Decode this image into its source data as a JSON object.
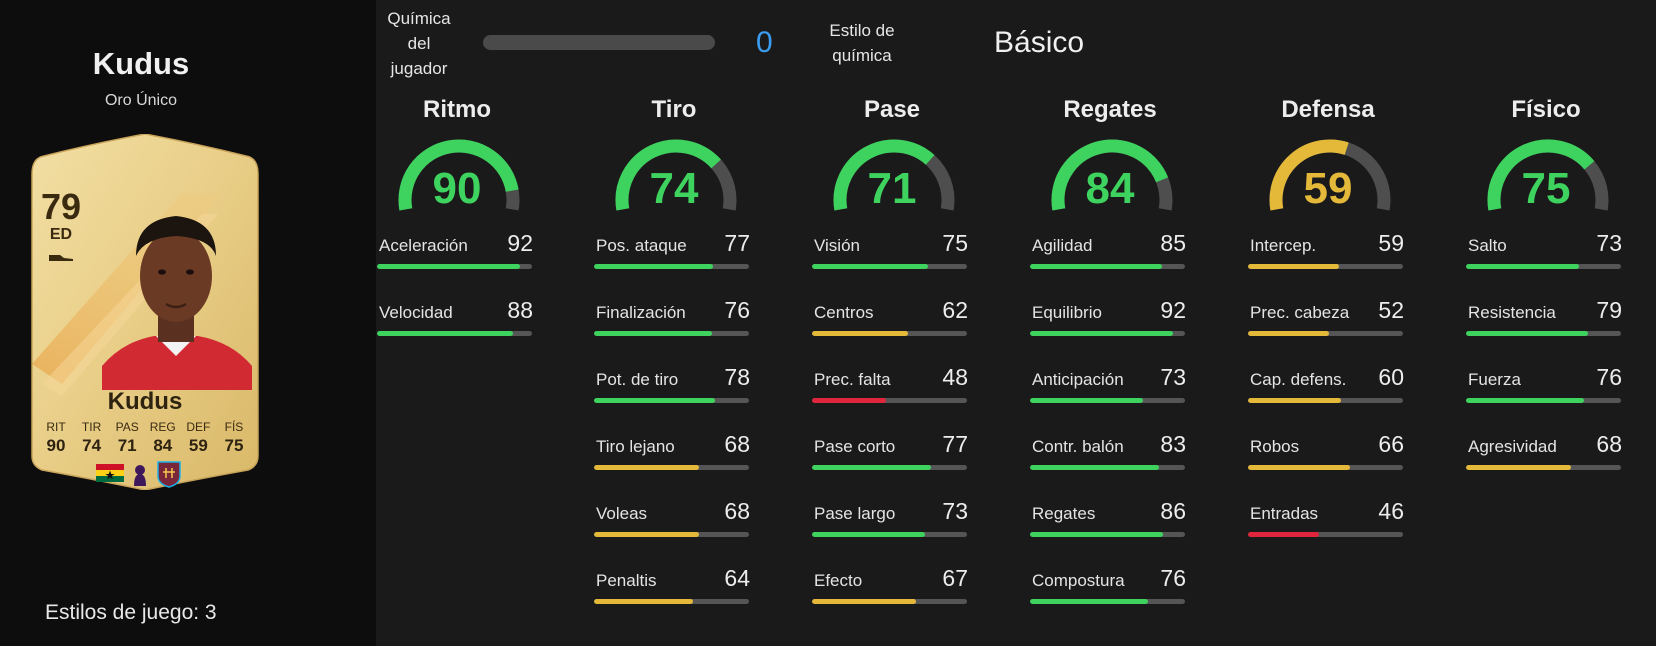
{
  "player": {
    "name": "Kudus",
    "version": "Oro Único",
    "rating": "79",
    "position": "ED",
    "card_name": "Kudus",
    "card_stats": [
      {
        "label": "RIT",
        "value": "90"
      },
      {
        "label": "TIR",
        "value": "74"
      },
      {
        "label": "PAS",
        "value": "71"
      },
      {
        "label": "REG",
        "value": "84"
      },
      {
        "label": "DEF",
        "value": "59"
      },
      {
        "label": "FÍS",
        "value": "75"
      }
    ]
  },
  "playstyles": "Estilos de juego: 3",
  "chemistry": {
    "label": "Química del jugador",
    "value": "0",
    "style_label": "Estilo de química",
    "style_value": "Básico"
  },
  "colors": {
    "green": "#3ed25e",
    "yellow": "#e4b93a",
    "red": "#e0263c",
    "track": "#555555",
    "chem_blue": "#3b9cf0"
  },
  "categories": [
    {
      "title": "Ritmo",
      "value": "90",
      "level": "green",
      "stats": [
        {
          "name": "Aceleración",
          "value": "92",
          "level": "green"
        },
        {
          "name": "Velocidad",
          "value": "88",
          "level": "green"
        }
      ]
    },
    {
      "title": "Tiro",
      "value": "74",
      "level": "green",
      "stats": [
        {
          "name": "Pos. ataque",
          "value": "77",
          "level": "green"
        },
        {
          "name": "Finalización",
          "value": "76",
          "level": "green"
        },
        {
          "name": "Pot. de tiro",
          "value": "78",
          "level": "green"
        },
        {
          "name": "Tiro lejano",
          "value": "68",
          "level": "yellow"
        },
        {
          "name": "Voleas",
          "value": "68",
          "level": "yellow"
        },
        {
          "name": "Penaltis",
          "value": "64",
          "level": "yellow"
        }
      ]
    },
    {
      "title": "Pase",
      "value": "71",
      "level": "green",
      "stats": [
        {
          "name": "Visión",
          "value": "75",
          "level": "green"
        },
        {
          "name": "Centros",
          "value": "62",
          "level": "yellow"
        },
        {
          "name": "Prec. falta",
          "value": "48",
          "level": "red"
        },
        {
          "name": "Pase corto",
          "value": "77",
          "level": "green"
        },
        {
          "name": "Pase largo",
          "value": "73",
          "level": "green"
        },
        {
          "name": "Efecto",
          "value": "67",
          "level": "yellow"
        }
      ]
    },
    {
      "title": "Regates",
      "value": "84",
      "level": "green",
      "stats": [
        {
          "name": "Agilidad",
          "value": "85",
          "level": "green"
        },
        {
          "name": "Equilibrio",
          "value": "92",
          "level": "green"
        },
        {
          "name": "Anticipación",
          "value": "73",
          "level": "green"
        },
        {
          "name": "Contr. balón",
          "value": "83",
          "level": "green"
        },
        {
          "name": "Regates",
          "value": "86",
          "level": "green"
        },
        {
          "name": "Compostura",
          "value": "76",
          "level": "green"
        }
      ]
    },
    {
      "title": "Defensa",
      "value": "59",
      "level": "yellow",
      "stats": [
        {
          "name": "Intercep.",
          "value": "59",
          "level": "yellow"
        },
        {
          "name": "Prec. cabeza",
          "value": "52",
          "level": "yellow"
        },
        {
          "name": "Cap. defens.",
          "value": "60",
          "level": "yellow"
        },
        {
          "name": "Robos",
          "value": "66",
          "level": "yellow"
        },
        {
          "name": "Entradas",
          "value": "46",
          "level": "red"
        }
      ]
    },
    {
      "title": "Físico",
      "value": "75",
      "level": "green",
      "stats": [
        {
          "name": "Salto",
          "value": "73",
          "level": "green"
        },
        {
          "name": "Resistencia",
          "value": "79",
          "level": "green"
        },
        {
          "name": "Fuerza",
          "value": "76",
          "level": "green"
        },
        {
          "name": "Agresividad",
          "value": "68",
          "level": "yellow"
        }
      ]
    }
  ]
}
